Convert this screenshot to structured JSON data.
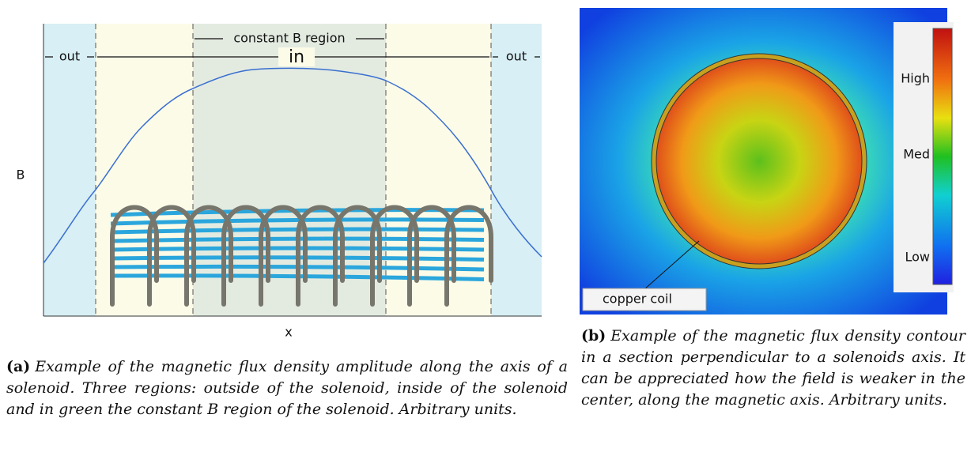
{
  "figure_a": {
    "regions": {
      "out_left": "out",
      "in": "in",
      "constant": "constant B region",
      "out_right": "out"
    },
    "y_label": "B",
    "x_label": "x",
    "caption_tag": "(a)",
    "caption": "Example of the magnetic flux density amplitude along the axis of a solenoid. Three regions: outside of the solenoid, inside of the solenoid and in green the constant B region of the solenoid. Arbitrary units."
  },
  "figure_b": {
    "annotation": "copper coil",
    "legend_labels": [
      "High",
      "Med",
      "Low"
    ],
    "caption_tag": "(b)",
    "caption": "Example of the magnetic flux density contour in a section perpendicular to a solenoids axis. It can be appreciated how the field is weaker in the center, along the magnetic axis. Arbitrary units."
  }
}
